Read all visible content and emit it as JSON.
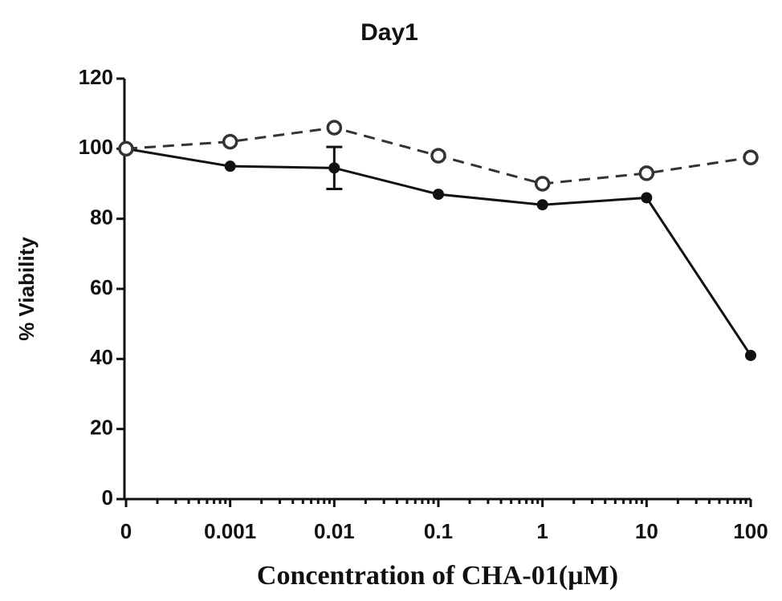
{
  "chart_data": {
    "type": "line",
    "title": "Day1",
    "x_label": "Concentration of CHA-01(µM)",
    "y_label": "% Viability",
    "categories": [
      "0",
      "0.001",
      "0.01",
      "0.1",
      "1",
      "10",
      "100"
    ],
    "series": [
      {
        "color": "#111111",
        "style": "solid",
        "marker": "filled",
        "values": [
          100,
          95,
          94.5,
          87,
          84,
          86,
          41
        ],
        "errors": [
          null,
          null,
          6,
          null,
          null,
          null,
          null
        ]
      },
      {
        "color": "#333333",
        "style": "dashed",
        "marker": "open",
        "values": [
          100,
          102,
          106,
          98,
          90,
          93,
          97.5
        ]
      }
    ],
    "ylim": [
      0,
      120
    ],
    "yticks": [
      0,
      20,
      40,
      60,
      80,
      100,
      120
    ],
    "grid": false
  }
}
